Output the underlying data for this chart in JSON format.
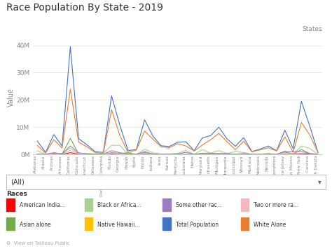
{
  "title": "Race Population By State - 2019",
  "xlabel_top": "States",
  "ylabel": "Value",
  "ylim": [
    0,
    42000000
  ],
  "yticks": [
    0,
    10000000,
    20000000,
    30000000,
    40000000
  ],
  "ytick_labels": [
    "0M",
    "10M",
    "20M",
    "30M",
    "40M"
  ],
  "states": [
    "Alabama",
    "Alaska",
    "Arizona",
    "Arkansas",
    "California",
    "Colorado",
    "Connecticut",
    "Delaware",
    "District of Columbia",
    "Florida",
    "Georgia",
    "Hawaii",
    "Idaho",
    "Illinois",
    "Indiana",
    "Iowa",
    "Kansas",
    "Kentucky",
    "Louisiana",
    "Maine",
    "Maryland",
    "Massachusetts",
    "Michigan",
    "Minnesota",
    "Mississippi",
    "Missouri",
    "Montana",
    "Nebraska",
    "Nevada",
    "New Hampshire",
    "New Jersey",
    "New Mexico",
    "New York",
    "North Carolina",
    "North Dakota"
  ],
  "series": {
    "Total Population": {
      "color": "#4472C4",
      "values": [
        4903185,
        731545,
        7278717,
        3017804,
        39512223,
        5758736,
        3565287,
        973764,
        705749,
        21477737,
        10617423,
        1415872,
        1787065,
        12671821,
        6732219,
        3155070,
        2913314,
        4467673,
        4648794,
        1344212,
        6045680,
        6892503,
        9986857,
        5639632,
        2976149,
        6137428,
        1068778,
        1934408,
        3080156,
        1359711,
        8882190,
        2096829,
        19453561,
        10488084,
        762062
      ]
    },
    "White Alone": {
      "color": "#ED7D31",
      "values": [
        3275394,
        480765,
        5395775,
        2316330,
        23960588,
        4472251,
        2799981,
        702093,
        311819,
        16384085,
        6901049,
        673063,
        1639085,
        8546709,
        5584871,
        2807501,
        2443560,
        3914219,
        3089158,
        1256639,
        3432587,
        5379609,
        7710173,
        4571098,
        1710823,
        4818040,
        939100,
        1680963,
        2404640,
        1275680,
        6419681,
        837924,
        11671874,
        7202219,
        666773
      ]
    },
    "Black or African American alone": {
      "color": "#A9D18E",
      "values": [
        1292823,
        23476,
        318792,
        450490,
        2299072,
        214277,
        357845,
        199561,
        305127,
        3351616,
        3315838,
        24720,
        11475,
        1882924,
        637226,
        107999,
        166169,
        369462,
        1505025,
        16665,
        1757014,
        459330,
        1376001,
        327394,
        1097892,
        698418,
        4538,
        92765,
        263367,
        17001,
        1221088,
        45195,
        3092341,
        2218612,
        23702
      ]
    },
    "Asian alone": {
      "color": "#70AD47",
      "values": [
        72524,
        48469,
        231775,
        46335,
        5839458,
        185659,
        163200,
        40014,
        31023,
        648249,
        395280,
        564021,
        23185,
        682082,
        147965,
        71624,
        90811,
        55017,
        84808,
        14085,
        429729,
        430709,
        330066,
        257938,
        14961,
        120477,
        10296,
        47688,
        265681,
        33475,
        835422,
        31280,
        1786456,
        325394,
        12614
      ]
    },
    "American Indian alone": {
      "color": "#FF0000",
      "values": [
        25882,
        109026,
        308989,
        19974,
        631016,
        58596,
        13765,
        5146,
        2560,
        76152,
        37803,
        6004,
        24337,
        60896,
        19065,
        11059,
        30015,
        10350,
        28956,
        8935,
        27104,
        18895,
        57673,
        59793,
        22553,
        28419,
        66973,
        18571,
        55789,
        4250,
        61778,
        218983,
        256057,
        133478,
        39002
      ]
    },
    "Two or more races": {
      "color": "#F4B8C1",
      "values": [
        66643,
        60193,
        287149,
        52979,
        1527706,
        196613,
        96048,
        25004,
        30282,
        477571,
        239613,
        94014,
        57073,
        374095,
        197572,
        76087,
        68540,
        94978,
        112327,
        36394,
        208780,
        254640,
        279979,
        163011,
        52481,
        135706,
        27540,
        53765,
        103718,
        35459,
        320897,
        72827,
        541525,
        296296,
        28394
      ]
    },
    "Some other race alone": {
      "color": "#9E7CC1",
      "values": [
        89342,
        9146,
        648671,
        131652,
        3068699,
        588340,
        121697,
        1946,
        24938,
        1366454,
        610040,
        48060,
        31910,
        1011115,
        145520,
        80800,
        114219,
        124647,
        798520,
        10494,
        191466,
        249320,
        216965,
        260398,
        81439,
        322368,
        20331,
        40656,
        47901,
        0,
        1023324,
        890620,
        1105308,
        312085,
        11577
      ]
    }
  },
  "legend_row1": [
    {
      "label": "American India...",
      "color": "#FF0000"
    },
    {
      "label": "Black or Africa...",
      "color": "#A9D18E"
    },
    {
      "label": "Some other rac...",
      "color": "#9E7CC1"
    },
    {
      "label": "Two or more ra...",
      "color": "#F4B8C1"
    }
  ],
  "legend_row2": [
    {
      "label": "Asian alone",
      "color": "#70AD47"
    },
    {
      "label": "Native Hawaii...",
      "color": "#FFC000"
    },
    {
      "label": "Total Population",
      "color": "#4472C4"
    },
    {
      "label": "White Alone",
      "color": "#ED7D31"
    }
  ],
  "series_order": [
    "Total Population",
    "White Alone",
    "Black or African American alone",
    "Asian alone",
    "American Indian alone",
    "Two or more races",
    "Some other race alone"
  ],
  "bg_color": "#FFFFFF",
  "grid_color": "#E0E0E0",
  "title_fontsize": 10,
  "axis_fontsize": 7,
  "tick_fontsize": 6.5
}
